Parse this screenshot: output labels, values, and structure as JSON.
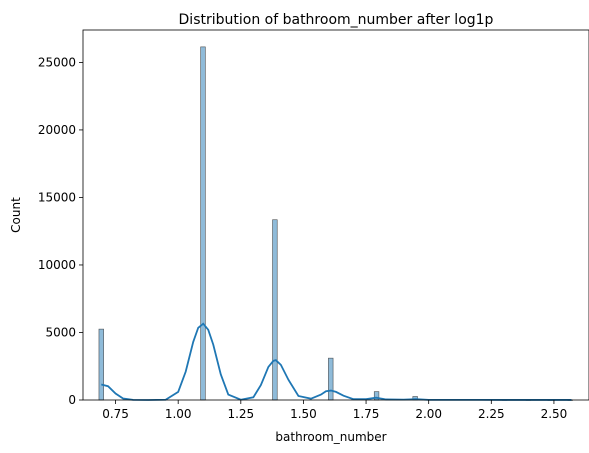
{
  "chart_data": {
    "type": "histogram",
    "title": "Distribution of bathroom_number after log1p",
    "xlabel": "bathroom_number",
    "ylabel": "Count",
    "xlim": [
      0.62,
      2.64
    ],
    "ylim": [
      0,
      27400
    ],
    "xticks": [
      0.75,
      1.0,
      1.25,
      1.5,
      1.75,
      2.0,
      2.25,
      2.5
    ],
    "xtick_labels": [
      "0.75",
      "1.00",
      "1.25",
      "1.50",
      "1.75",
      "2.00",
      "2.25",
      "2.50"
    ],
    "yticks": [
      0,
      5000,
      10000,
      15000,
      20000,
      25000
    ],
    "ytick_labels": [
      "0",
      "5000",
      "10000",
      "15000",
      "20000",
      "25000"
    ],
    "bin_width": 0.0187,
    "bars": [
      {
        "x": 0.693,
        "count": 5250
      },
      {
        "x": 1.099,
        "count": 26150
      },
      {
        "x": 1.386,
        "count": 13350
      },
      {
        "x": 1.609,
        "count": 3100
      },
      {
        "x": 1.792,
        "count": 620
      },
      {
        "x": 1.946,
        "count": 260
      },
      {
        "x": 2.079,
        "count": 50
      },
      {
        "x": 2.197,
        "count": 30
      },
      {
        "x": 2.303,
        "count": 20
      },
      {
        "x": 2.398,
        "count": 15
      },
      {
        "x": 2.485,
        "count": 10
      },
      {
        "x": 2.565,
        "count": 10
      }
    ],
    "kde": {
      "x": [
        0.693,
        0.72,
        0.75,
        0.78,
        0.82,
        0.88,
        0.95,
        1.0,
        1.03,
        1.06,
        1.08,
        1.1,
        1.12,
        1.14,
        1.17,
        1.2,
        1.25,
        1.3,
        1.33,
        1.36,
        1.38,
        1.39,
        1.41,
        1.44,
        1.48,
        1.53,
        1.57,
        1.59,
        1.61,
        1.63,
        1.66,
        1.7,
        1.75,
        1.79,
        1.83,
        1.9,
        1.95,
        2.0,
        2.1,
        2.2,
        2.3,
        2.4,
        2.5,
        2.57
      ],
      "y": [
        1150,
        1020,
        480,
        110,
        10,
        0,
        20,
        600,
        2100,
        4300,
        5350,
        5650,
        5200,
        4100,
        1900,
        400,
        20,
        200,
        1100,
        2450,
        2900,
        2950,
        2600,
        1500,
        300,
        100,
        400,
        650,
        700,
        600,
        320,
        60,
        60,
        170,
        40,
        30,
        60,
        10,
        10,
        10,
        5,
        5,
        5,
        5
      ]
    },
    "bar_color": "#1f77b4",
    "bar_alpha": 0.5,
    "line_color": "#1f77b4",
    "grid": false,
    "legend": "none"
  }
}
